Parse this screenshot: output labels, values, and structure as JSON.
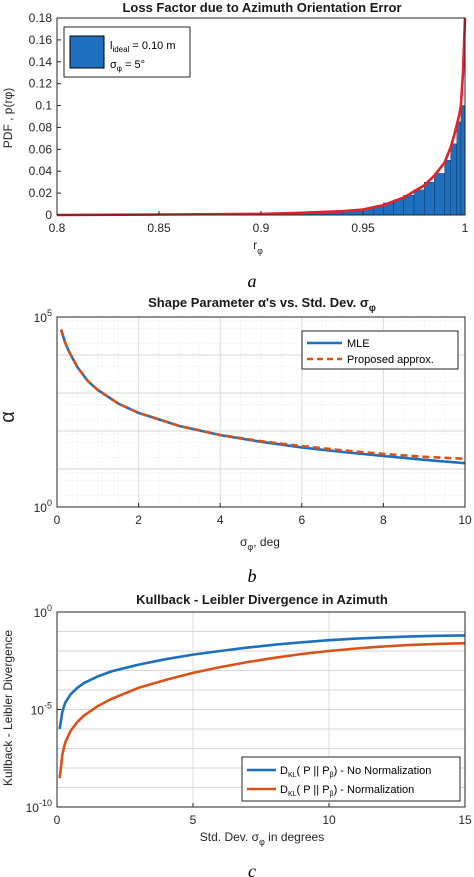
{
  "figure": {
    "captions": [
      "a",
      "b",
      "c"
    ]
  },
  "chart_data": [
    {
      "type": "bar",
      "title": "Loss Factor due to Azimuth Orientation Error",
      "xlabel_main": "r",
      "xlabel_sub": "φ",
      "ylabel": "PDF , p(rφ)",
      "xlim": [
        0.8,
        1.0
      ],
      "ylim": [
        0,
        0.18
      ],
      "x_ticks": [
        0.8,
        0.85,
        0.9,
        0.95,
        1.0
      ],
      "x_tick_labels": [
        "0.8",
        "0.85",
        "0.9",
        "0.95",
        "1"
      ],
      "y_ticks": [
        0,
        0.02,
        0.04,
        0.06,
        0.08,
        0.1,
        0.12,
        0.14,
        0.16,
        0.18
      ],
      "y_tick_labels": [
        "0",
        "0.02",
        "0.04",
        "0.06",
        "0.08",
        "0.1",
        "0.12",
        "0.14",
        "0.16",
        "0.18"
      ],
      "bar_color": "#1f6fbf",
      "curve_color": "#e8202a",
      "legend": {
        "line1": "l",
        "line1_sub": "ideal",
        "line1_rest": " = 0.10 m",
        "line2": "σ",
        "line2_sub": "φ",
        "line2_rest": " = 5°"
      },
      "histogram": {
        "bin_edges": [
          0.9,
          0.91,
          0.92,
          0.93,
          0.94,
          0.95,
          0.955,
          0.96,
          0.965,
          0.97,
          0.975,
          0.98,
          0.985,
          0.99,
          0.993,
          0.996,
          0.998,
          1.0
        ],
        "values": [
          0.001,
          0.0015,
          0.002,
          0.003,
          0.004,
          0.006,
          0.008,
          0.011,
          0.014,
          0.018,
          0.023,
          0.03,
          0.038,
          0.05,
          0.065,
          0.085,
          0.1
        ]
      },
      "curve": {
        "x": [
          0.8,
          0.85,
          0.9,
          0.92,
          0.94,
          0.95,
          0.96,
          0.97,
          0.98,
          0.985,
          0.99,
          0.993,
          0.995,
          0.997,
          0.998,
          0.999,
          1.0
        ],
        "y": [
          0.0,
          0.0005,
          0.001,
          0.002,
          0.0035,
          0.005,
          0.009,
          0.016,
          0.027,
          0.036,
          0.048,
          0.062,
          0.075,
          0.09,
          0.1,
          0.13,
          0.18
        ]
      }
    },
    {
      "type": "line",
      "title": "Shape Parameter  α's vs. Std. Dev. σ",
      "title_sub": "φ",
      "xlabel_main": "σ",
      "xlabel_sub": "φ",
      "xlabel_rest": ", deg",
      "ylabel": "α",
      "xlim": [
        0,
        10
      ],
      "ylim": [
        1,
        100000
      ],
      "y_scale": "log",
      "x_ticks": [
        0,
        2,
        4,
        6,
        8,
        10
      ],
      "x_tick_labels": [
        "0",
        "2",
        "4",
        "6",
        "8",
        "10"
      ],
      "y_tick_labels": [
        {
          "value": 1,
          "base": "10",
          "exp": "0"
        },
        {
          "value": 100000,
          "base": "10",
          "exp": "5"
        }
      ],
      "grid": true,
      "legend_position": "top-right",
      "series": [
        {
          "name": "MLE",
          "color": "#1f6fbf",
          "style": "solid",
          "x": [
            0.1,
            0.2,
            0.3,
            0.5,
            0.75,
            1.0,
            1.5,
            2.0,
            3.0,
            4.0,
            5.0,
            6.0,
            7.0,
            8.0,
            9.0,
            10.0
          ],
          "y": [
            47000,
            21000,
            12000,
            4800,
            2100,
            1200,
            530,
            300,
            135,
            78,
            52,
            37,
            28,
            22,
            17.5,
            14.2
          ]
        },
        {
          "name": "Proposed approx.",
          "color": "#d95319",
          "style": "dashed",
          "x": [
            0.1,
            0.2,
            0.3,
            0.5,
            0.75,
            1.0,
            1.5,
            2.0,
            3.0,
            4.0,
            5.0,
            6.0,
            7.0,
            8.0,
            9.0,
            10.0
          ],
          "y": [
            47000,
            21000,
            12000,
            4800,
            2100,
            1200,
            530,
            300,
            135,
            79,
            54,
            40,
            31,
            25,
            21,
            18.5
          ]
        }
      ]
    },
    {
      "type": "line",
      "title": "Kullback - Leibler Divergence in Azimuth",
      "xlabel_main": "Std. Dev. σ",
      "xlabel_sub": "φ",
      "xlabel_rest": " in degrees",
      "ylabel": "Kullback - Leibler Divergence",
      "xlim": [
        0,
        15
      ],
      "ylim": [
        1e-10,
        1
      ],
      "y_scale": "log",
      "x_ticks": [
        0,
        5,
        10,
        15
      ],
      "x_tick_labels": [
        "0",
        "5",
        "10",
        "15"
      ],
      "y_tick_labels": [
        {
          "value": 1e-10,
          "base": "10",
          "exp": "-10"
        },
        {
          "value": 1e-05,
          "base": "10",
          "exp": "-5"
        },
        {
          "value": 1,
          "base": "10",
          "exp": "0"
        }
      ],
      "grid": true,
      "legend_position": "bottom-right",
      "series": [
        {
          "name": "D",
          "name_sub": "KL",
          "name_rest": "( P || P",
          "name_sub2": "β",
          "name_end": ") - No Normalization",
          "color": "#1f6fbf",
          "x": [
            0.1,
            0.2,
            0.3,
            0.5,
            0.75,
            1,
            1.5,
            2,
            3,
            4,
            5,
            6,
            7,
            8,
            9,
            10,
            11,
            12,
            13,
            14,
            15
          ],
          "y": [
            1e-06,
            8e-06,
            2.2e-05,
            6e-05,
            0.00013,
            0.00023,
            0.0005,
            0.0009,
            0.002,
            0.0038,
            0.0065,
            0.01,
            0.015,
            0.021,
            0.028,
            0.036,
            0.043,
            0.05,
            0.056,
            0.06,
            0.063
          ]
        },
        {
          "name": "D",
          "name_sub": "KL",
          "name_rest": "( P || P",
          "name_sub2": "β",
          "name_end": ") - Normalization",
          "color": "#d95319",
          "x": [
            0.1,
            0.2,
            0.3,
            0.5,
            0.75,
            1,
            1.5,
            2,
            3,
            4,
            5,
            6,
            7,
            8,
            9,
            10,
            11,
            12,
            13,
            14,
            15
          ],
          "y": [
            3e-09,
            5e-08,
            2e-07,
            8e-07,
            2.3e-06,
            5e-06,
            1.5e-05,
            3.5e-05,
            0.00013,
            0.00033,
            0.00075,
            0.0015,
            0.0027,
            0.0045,
            0.007,
            0.01,
            0.0135,
            0.017,
            0.0205,
            0.023,
            0.025
          ]
        }
      ]
    }
  ]
}
